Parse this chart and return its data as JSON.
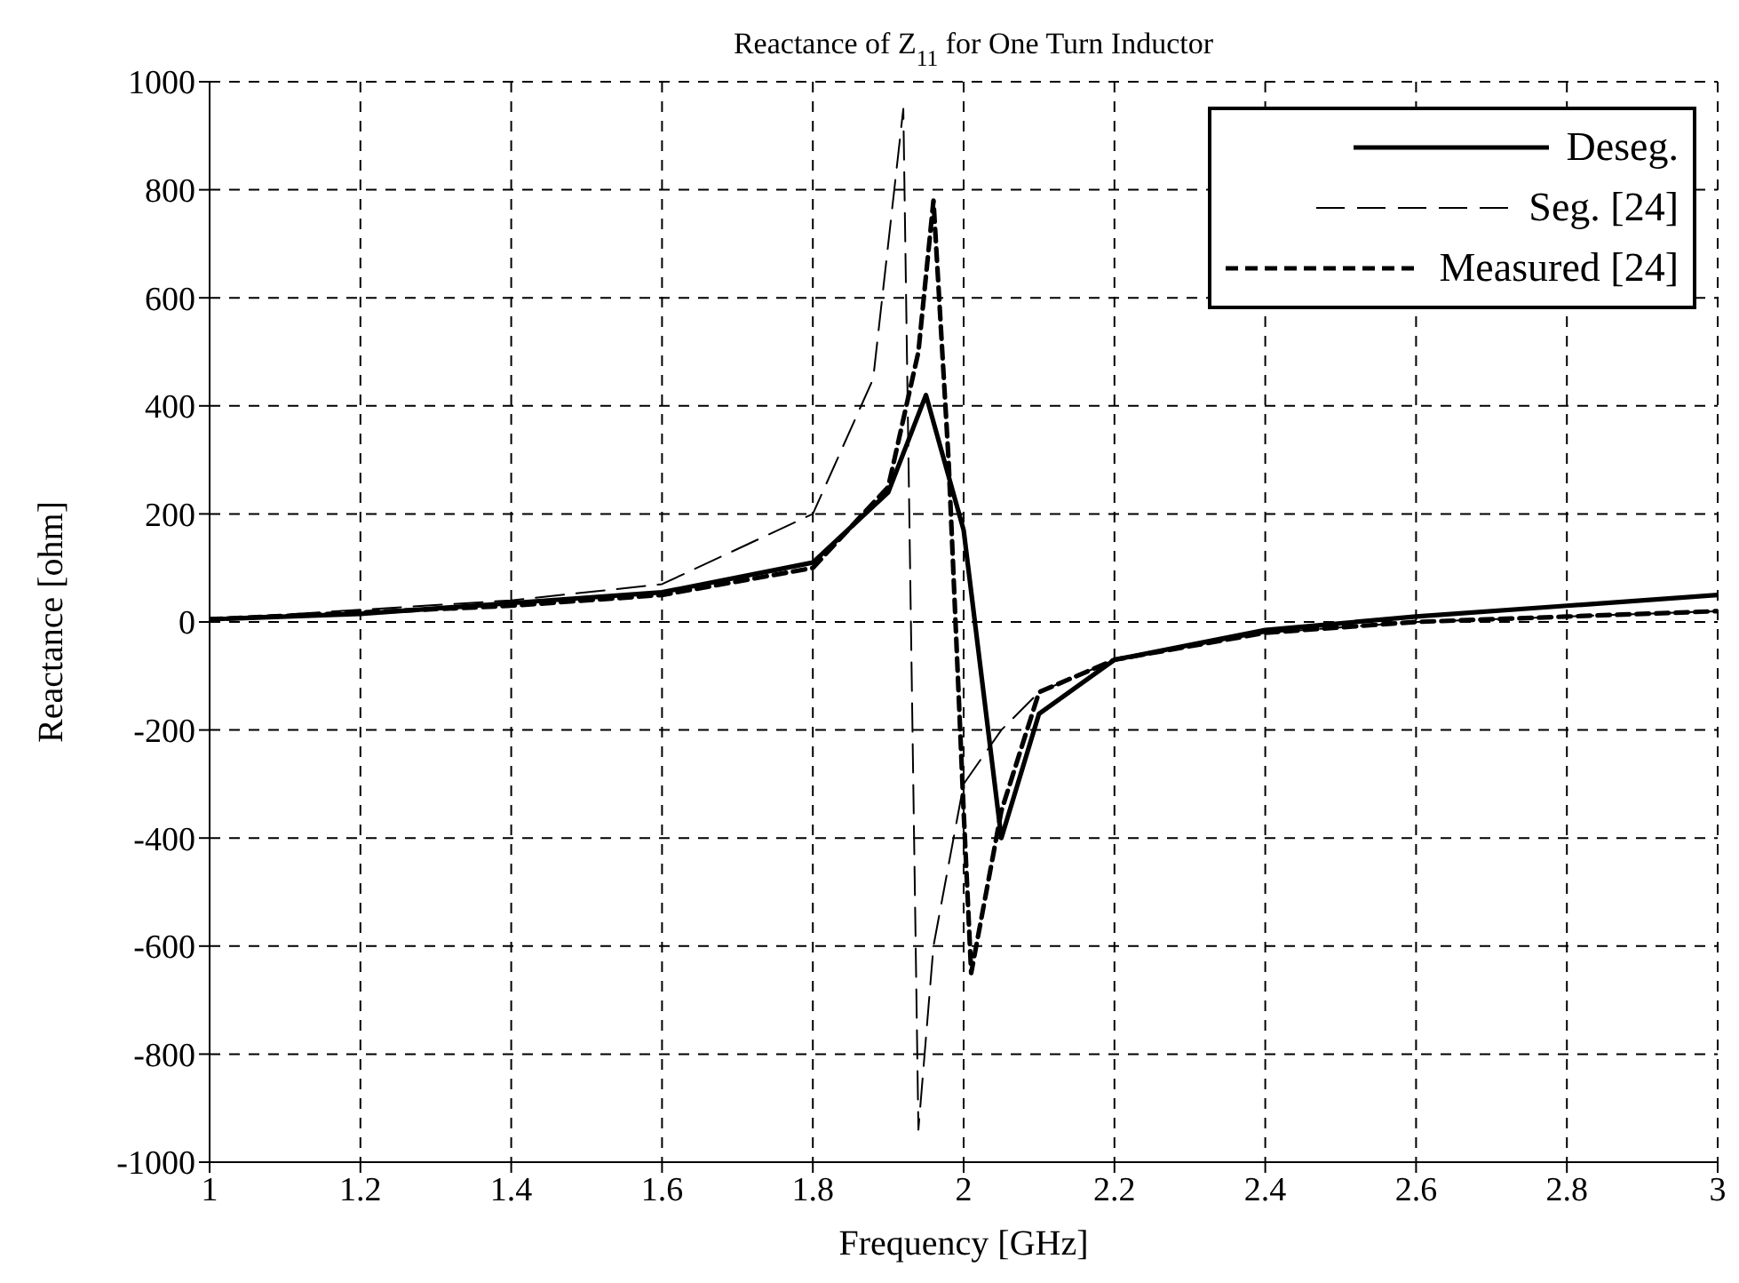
{
  "chart_data": {
    "type": "line",
    "title": "Reactance of Z$_{11}$ for One Turn Inductor",
    "xlabel": "Frequency [GHz]",
    "ylabel": "Reactance [ohm]",
    "xlim": [
      1,
      3
    ],
    "xticks": [
      1,
      1.2,
      1.4,
      1.6,
      1.8,
      2,
      2.2,
      2.4,
      2.6,
      2.8,
      3
    ],
    "ylim": [
      -1000,
      1000
    ],
    "yticks": [
      -1000,
      -800,
      -600,
      -400,
      -200,
      0,
      200,
      400,
      600,
      800,
      1000
    ],
    "grid": true,
    "legend": "top right",
    "marker": "none",
    "series": [
      {
        "name": "Deseg.",
        "color": "#000000",
        "line_style": "solid",
        "x": [
          1,
          1.2,
          1.4,
          1.6,
          1.8,
          1.9,
          1.95,
          2,
          2.05,
          2.1,
          2.2,
          2.4,
          2.6,
          2.8,
          3
        ],
        "values": [
          5,
          15,
          35,
          55,
          110,
          240,
          420,
          170,
          -400,
          -170,
          -70,
          -15,
          10,
          30,
          50
        ]
      },
      {
        "name": "Seg. [24]",
        "color": "#000000",
        "line_style": "dashed",
        "x": [
          1,
          1.4,
          1.6,
          1.8,
          1.88,
          1.92,
          1.94,
          1.96,
          2,
          2.05,
          2.1,
          2.2,
          2.4,
          2.6,
          3
        ],
        "values": [
          5,
          40,
          70,
          200,
          450,
          950,
          -940,
          -600,
          -300,
          -200,
          -130,
          -70,
          -20,
          0,
          20
        ]
      },
      {
        "name": "Measured [24]",
        "color": "#000000",
        "line_style": "dashed",
        "x": [
          1,
          1.4,
          1.6,
          1.8,
          1.9,
          1.94,
          1.96,
          1.98,
          2,
          2.01,
          2.05,
          2.1,
          2.2,
          2.4,
          2.6,
          2.8,
          3
        ],
        "values": [
          5,
          30,
          50,
          100,
          250,
          500,
          780,
          300,
          -350,
          -650,
          -350,
          -130,
          -70,
          -20,
          0,
          10,
          20
        ]
      }
    ]
  }
}
